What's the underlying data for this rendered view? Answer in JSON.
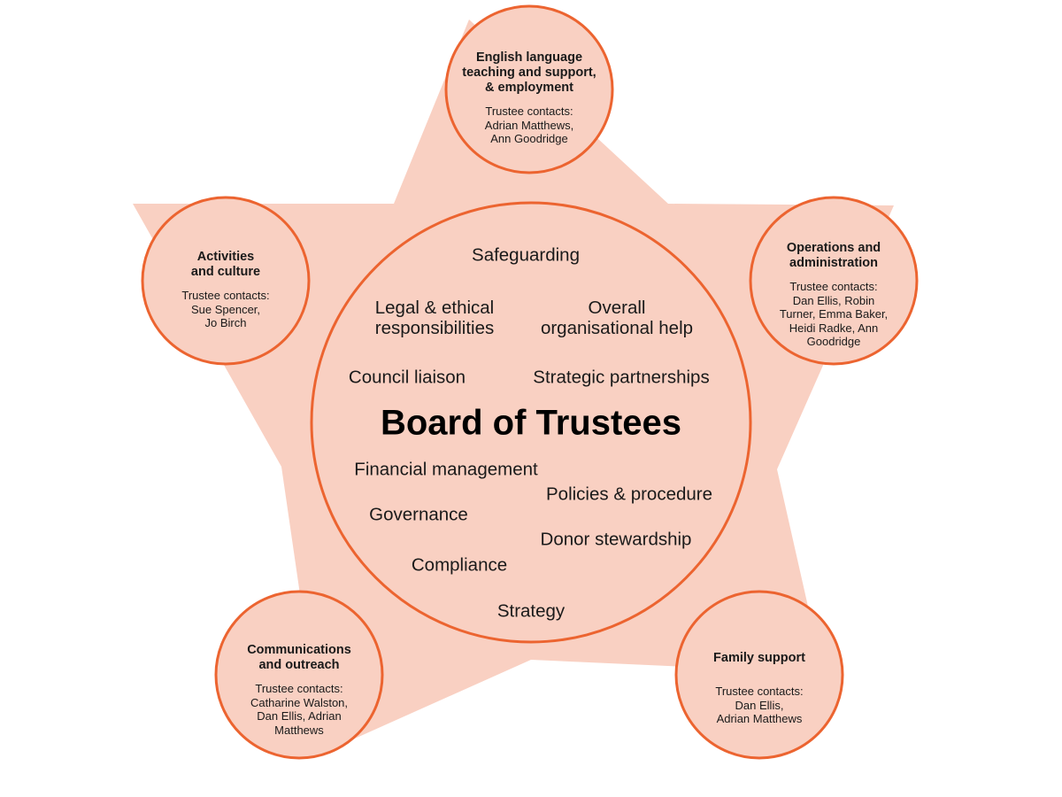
{
  "colors": {
    "star_fill": "#f9d0c2",
    "circle_fill": "#f9d0c2",
    "circle_stroke": "#ec6430",
    "text": "#1a1a1a"
  },
  "center": {
    "title": "Board of Trustees",
    "items": {
      "safeguarding": "Safeguarding",
      "legal": "Legal & ethical\nresponsibilities",
      "overall_help": "Overall\norganisational help",
      "council": "Council liaison",
      "partnerships": "Strategic partnerships",
      "financial": "Financial management",
      "policies": "Policies & procedure",
      "governance": "Governance",
      "donor": "Donor stewardship",
      "compliance": "Compliance",
      "strategy": "Strategy"
    }
  },
  "satellites": {
    "top": {
      "title": "English language\nteaching and support,\n& employment",
      "contacts_label": "Trustee contacts:",
      "contacts": "Adrian Matthews,\nAnn Goodridge"
    },
    "left": {
      "title": "Activities\nand culture",
      "contacts_label": "Trustee contacts:",
      "contacts": "Sue Spencer,\nJo Birch"
    },
    "right": {
      "title": "Operations and\nadministration",
      "contacts_label": "Trustee contacts:",
      "contacts": "Dan Ellis, Robin\nTurner, Emma Baker,\nHeidi Radke, Ann\nGoodridge"
    },
    "bottom_left": {
      "title": "Communications\nand outreach",
      "contacts_label": "Trustee contacts:",
      "contacts": "Catharine Walston,\nDan Ellis, Adrian\nMatthews"
    },
    "bottom_right": {
      "title": "Family support",
      "contacts_label": "Trustee contacts:",
      "contacts": "Dan Ellis,\nAdrian Matthews"
    }
  }
}
